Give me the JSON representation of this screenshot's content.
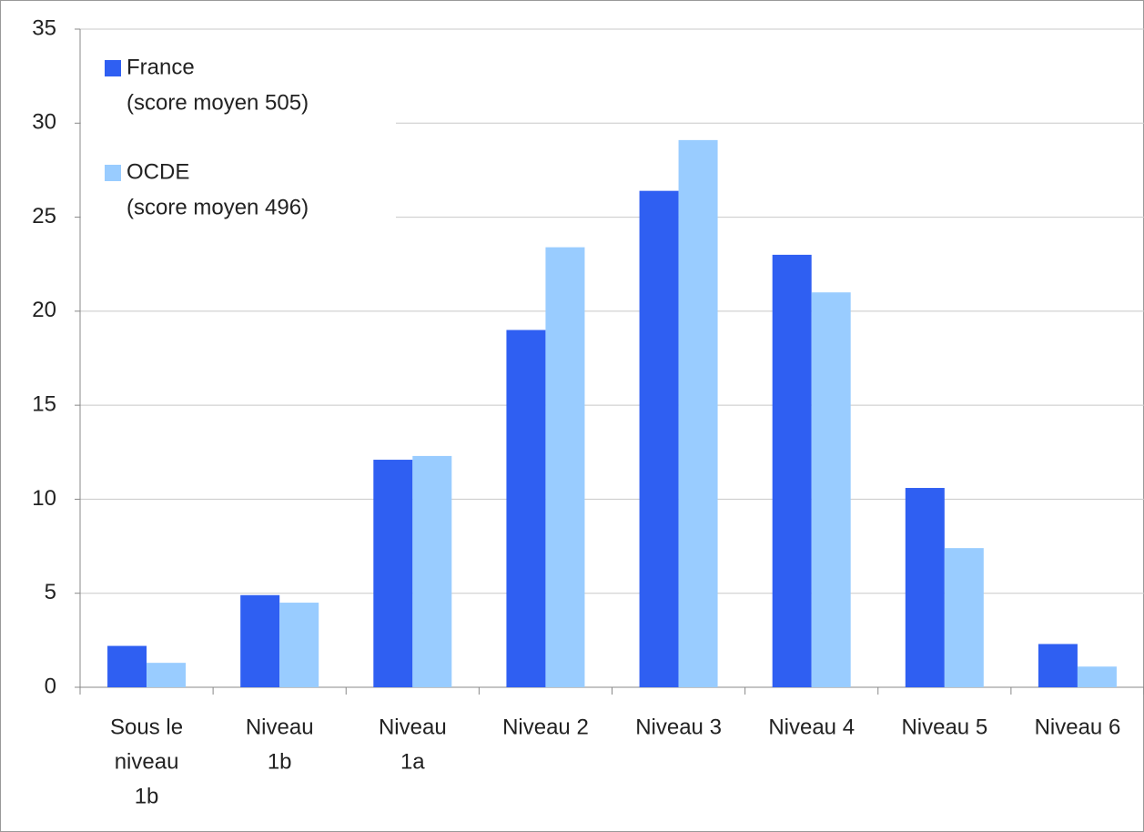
{
  "chart_data": {
    "type": "bar",
    "categories": [
      [
        "Sous le",
        "niveau",
        "1b"
      ],
      [
        "Niveau",
        "1b"
      ],
      [
        "Niveau",
        "1a"
      ],
      [
        "Niveau 2"
      ],
      [
        "Niveau 3"
      ],
      [
        "Niveau 4"
      ],
      [
        "Niveau 5"
      ],
      [
        "Niveau 6"
      ]
    ],
    "series": [
      {
        "name": "France",
        "note": "(score moyen 505)",
        "color": "#2f5ff2",
        "values": [
          2.2,
          4.9,
          12.1,
          19.0,
          26.4,
          23.0,
          10.6,
          2.3
        ]
      },
      {
        "name": "OCDE",
        "note": "(score moyen 496)",
        "color": "#99ccff",
        "values": [
          1.3,
          4.5,
          12.3,
          23.4,
          29.1,
          21.0,
          7.4,
          1.1
        ]
      }
    ],
    "ylim": [
      0,
      35
    ],
    "yticks": [
      0,
      5,
      10,
      15,
      20,
      25,
      30,
      35
    ],
    "grid": true,
    "legend": "top-left"
  }
}
